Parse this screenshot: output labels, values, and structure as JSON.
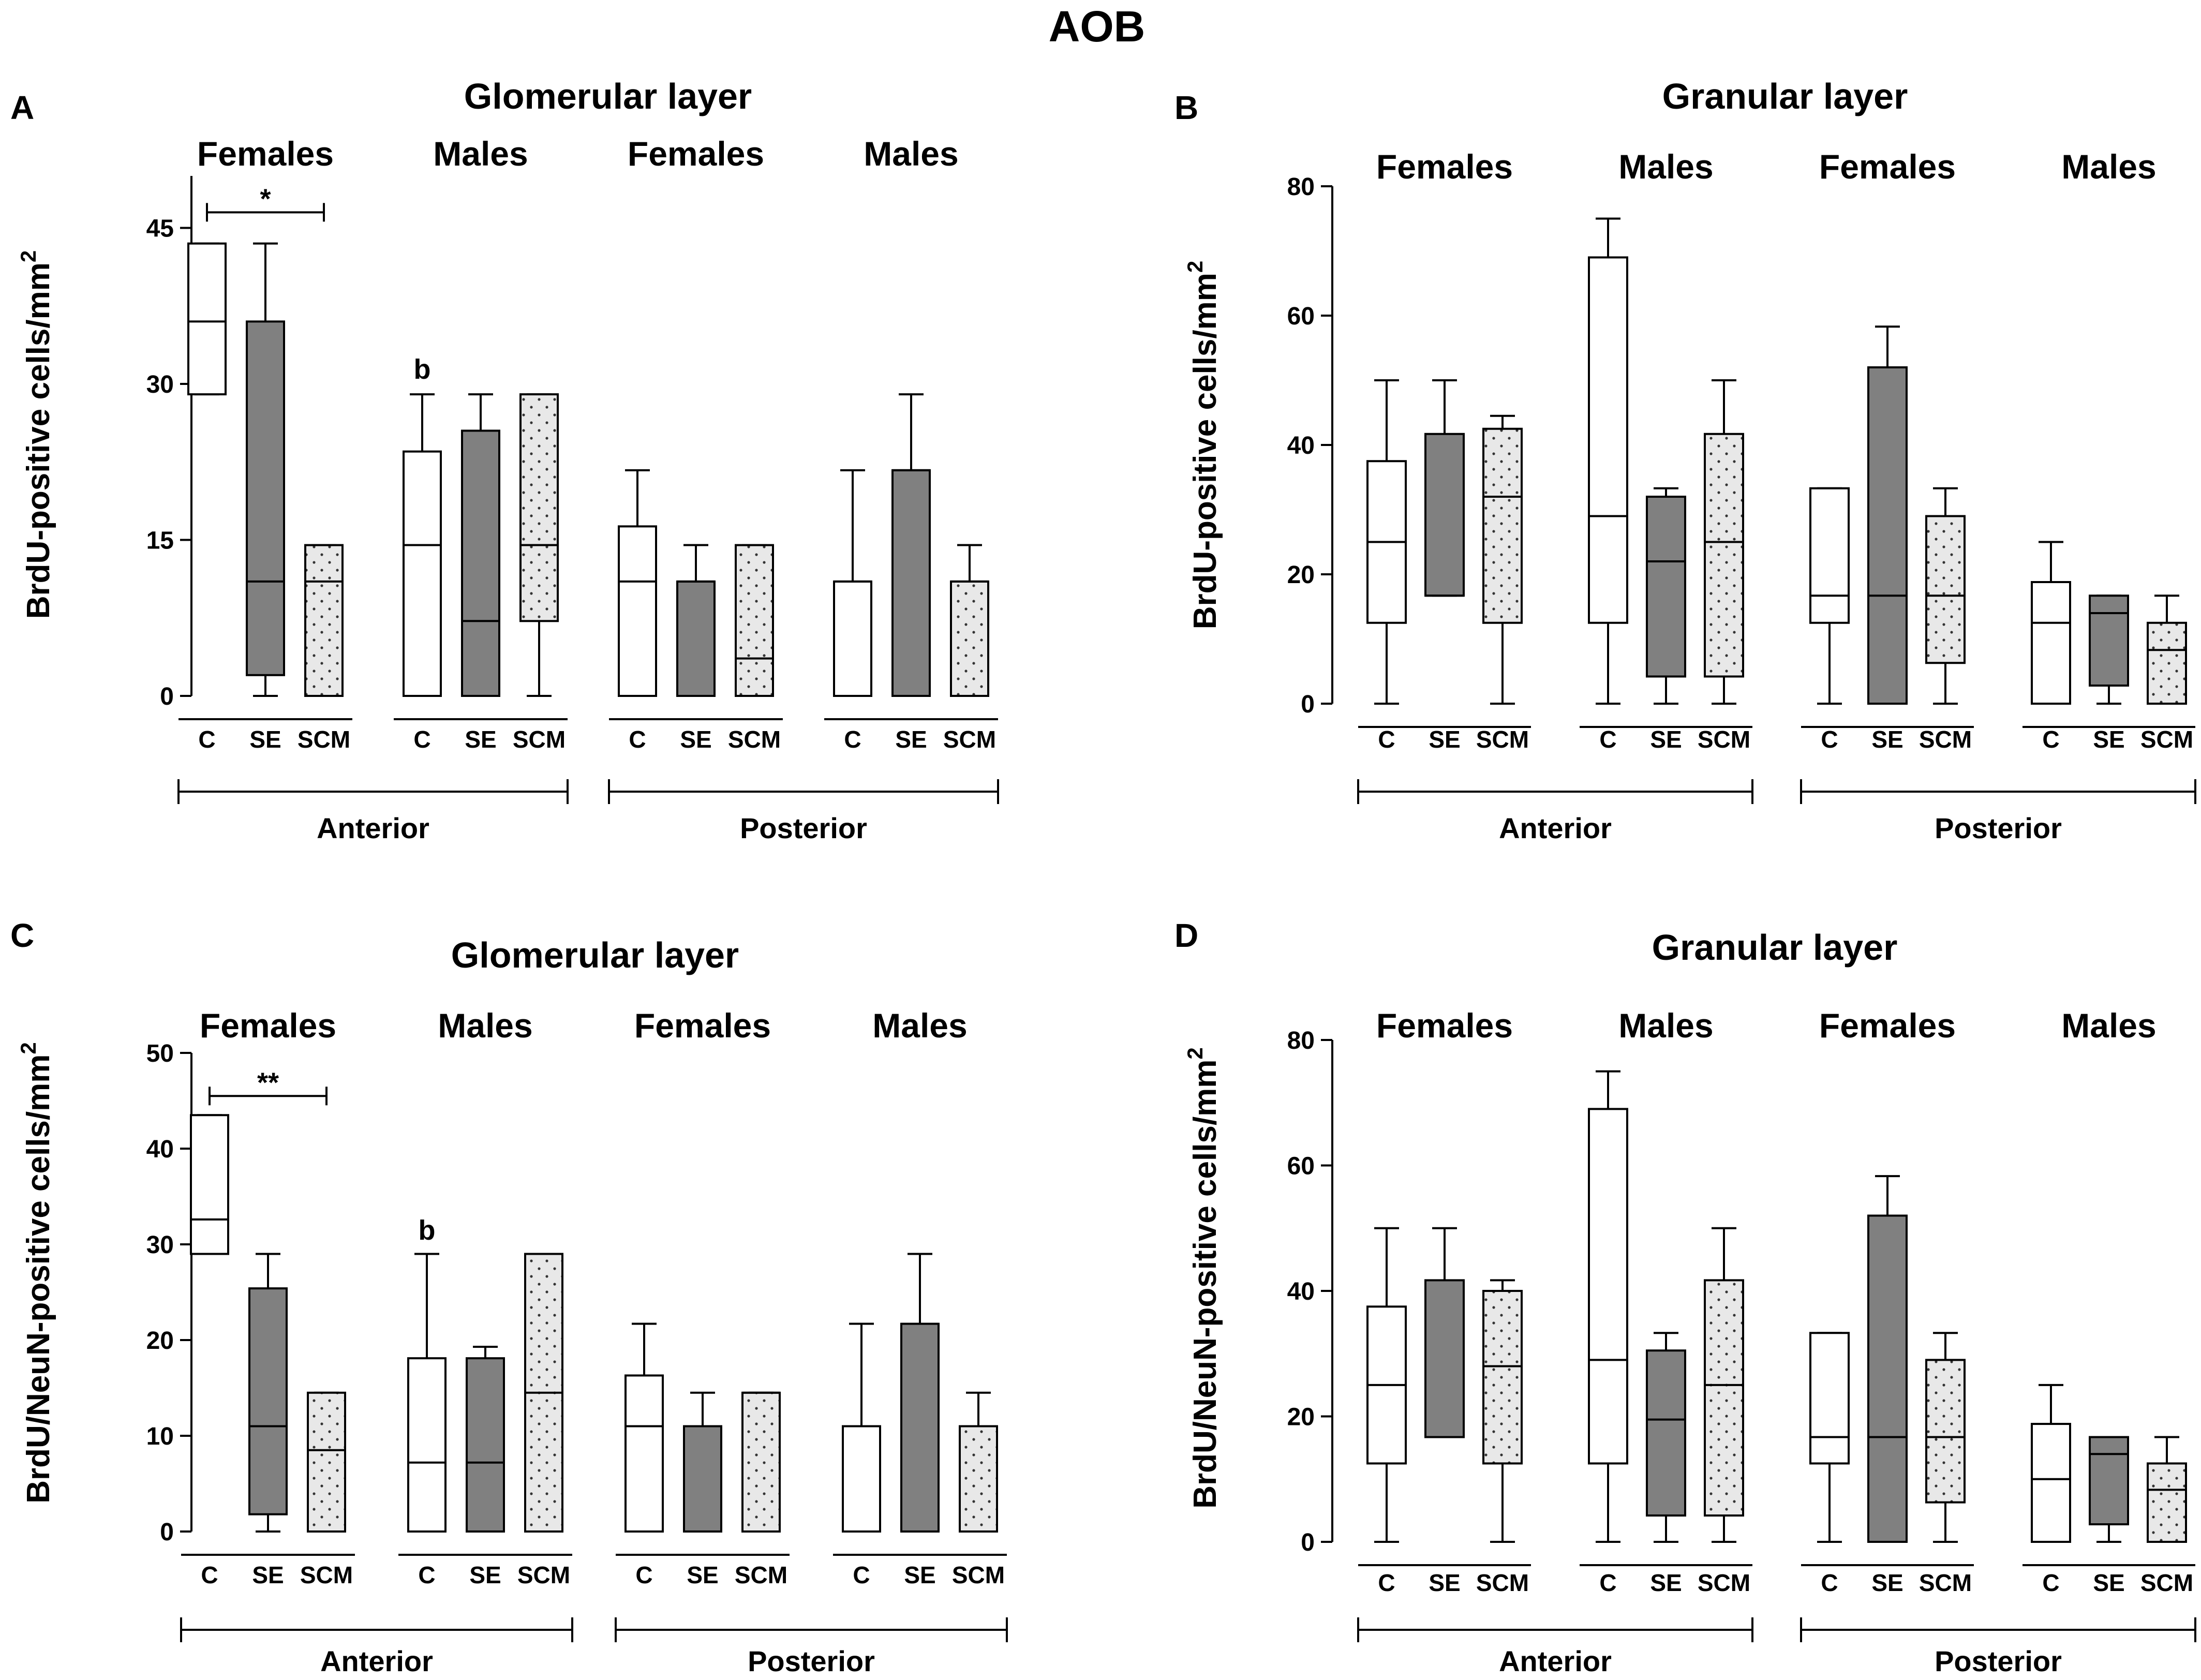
{
  "figure_title": "AOB",
  "colors": {
    "C": "#ffffff",
    "SE": "#808080",
    "SCM": "#e8e8e8",
    "stroke": "#000000"
  },
  "chart_data": [
    {
      "type": "boxplot",
      "panel": "A",
      "title": "Glomerular layer",
      "ylabel": "BrdU-positive cells/mm",
      "ylabel_sup": "2",
      "yticks": [
        0,
        15,
        30,
        45
      ],
      "ylim": [
        0,
        50
      ],
      "groups": [
        "Females",
        "Males",
        "Females",
        "Males"
      ],
      "regions": [
        "Anterior",
        "Posterior"
      ],
      "categories": [
        "C",
        "SE",
        "SCM"
      ],
      "series": [
        {
          "name": "Anterior Females",
          "boxes": [
            {
              "cat": "C",
              "min": 29,
              "q1": 29,
              "median": 36,
              "q3": 43.5,
              "max": 43.5
            },
            {
              "cat": "SE",
              "min": 0,
              "q1": 2,
              "median": 11,
              "q3": 36,
              "max": 43.5
            },
            {
              "cat": "SCM",
              "min": 0,
              "q1": 0,
              "median": 11,
              "q3": 14.5,
              "max": 14.5
            }
          ]
        },
        {
          "name": "Anterior Males",
          "boxes": [
            {
              "cat": "C",
              "min": 0,
              "q1": 0,
              "median": 14.5,
              "q3": 23.5,
              "max": 29
            },
            {
              "cat": "SE",
              "min": 0,
              "q1": 0,
              "median": 7.2,
              "q3": 25.5,
              "max": 29
            },
            {
              "cat": "SCM",
              "min": 0,
              "q1": 7.2,
              "median": 14.5,
              "q3": 29,
              "max": 29
            }
          ]
        },
        {
          "name": "Posterior Females",
          "boxes": [
            {
              "cat": "C",
              "min": 0,
              "q1": 0,
              "median": 11,
              "q3": 16.3,
              "max": 21.7
            },
            {
              "cat": "SE",
              "min": 0,
              "q1": 0,
              "median": 11,
              "q3": 11,
              "max": 14.5
            },
            {
              "cat": "SCM",
              "min": 0,
              "q1": 0,
              "median": 3.6,
              "q3": 14.5,
              "max": 14.5
            }
          ]
        },
        {
          "name": "Posterior Males",
          "boxes": [
            {
              "cat": "C",
              "min": 0,
              "q1": 0,
              "median": 11,
              "q3": 11,
              "max": 21.7
            },
            {
              "cat": "SE",
              "min": 0,
              "q1": 0,
              "median": 21.7,
              "q3": 21.7,
              "max": 29
            },
            {
              "cat": "SCM",
              "min": 0,
              "q1": 0,
              "median": 11,
              "q3": 11,
              "max": 14.5
            }
          ]
        }
      ],
      "annotations": [
        {
          "text": "*",
          "type": "bracket",
          "group": 0,
          "from": "C",
          "to": "SCM",
          "y": 46.5
        },
        {
          "text": "b",
          "type": "label",
          "group": 1,
          "cat": "C",
          "y": 30.5
        }
      ]
    },
    {
      "type": "boxplot",
      "panel": "B",
      "title": "Granular layer",
      "ylabel": "BrdU-positive cells/mm",
      "ylabel_sup": "2",
      "yticks": [
        0,
        20,
        40,
        60,
        80
      ],
      "ylim": [
        0,
        80
      ],
      "groups": [
        "Females",
        "Males",
        "Females",
        "Males"
      ],
      "regions": [
        "Anterior",
        "Posterior"
      ],
      "categories": [
        "C",
        "SE",
        "SCM"
      ],
      "series": [
        {
          "name": "Anterior Females",
          "boxes": [
            {
              "cat": "C",
              "min": 0,
              "q1": 12.5,
              "median": 25,
              "q3": 37.5,
              "max": 50
            },
            {
              "cat": "SE",
              "min": 16.7,
              "q1": 16.7,
              "median": 16.7,
              "q3": 41.7,
              "max": 50
            },
            {
              "cat": "SCM",
              "min": 0,
              "q1": 12.5,
              "median": 32,
              "q3": 42.5,
              "max": 44.5
            }
          ]
        },
        {
          "name": "Anterior Males",
          "boxes": [
            {
              "cat": "C",
              "min": 0,
              "q1": 12.5,
              "median": 29,
              "q3": 69,
              "max": 75
            },
            {
              "cat": "SE",
              "min": 0,
              "q1": 4.2,
              "median": 22,
              "q3": 32,
              "max": 33.3
            },
            {
              "cat": "SCM",
              "min": 0,
              "q1": 4.2,
              "median": 25,
              "q3": 41.7,
              "max": 50
            }
          ]
        },
        {
          "name": "Posterior Females",
          "boxes": [
            {
              "cat": "C",
              "min": 0,
              "q1": 12.5,
              "median": 16.7,
              "q3": 33.3,
              "max": 33.3
            },
            {
              "cat": "SE",
              "min": 0,
              "q1": 0,
              "median": 16.7,
              "q3": 52,
              "max": 58.3
            },
            {
              "cat": "SCM",
              "min": 0,
              "q1": 6.3,
              "median": 16.7,
              "q3": 29,
              "max": 33.3
            }
          ]
        },
        {
          "name": "Posterior Males",
          "boxes": [
            {
              "cat": "C",
              "min": 0,
              "q1": 0,
              "median": 12.5,
              "q3": 18.8,
              "max": 25
            },
            {
              "cat": "SE",
              "min": 0,
              "q1": 2.8,
              "median": 14,
              "q3": 16.7,
              "max": 16.7
            },
            {
              "cat": "SCM",
              "min": 0,
              "q1": 0,
              "median": 8.3,
              "q3": 12.5,
              "max": 16.7
            }
          ]
        }
      ],
      "annotations": []
    },
    {
      "type": "boxplot",
      "panel": "C",
      "title": "Glomerular layer",
      "ylabel": "BrdU/NeuN-positive cells/mm",
      "ylabel_sup": "2",
      "yticks": [
        0,
        10,
        20,
        30,
        40,
        50
      ],
      "ylim": [
        0,
        50
      ],
      "groups": [
        "Females",
        "Males",
        "Females",
        "Males"
      ],
      "regions": [
        "Anterior",
        "Posterior"
      ],
      "categories": [
        "C",
        "SE",
        "SCM"
      ],
      "series": [
        {
          "name": "Anterior Females",
          "boxes": [
            {
              "cat": "C",
              "min": 29,
              "q1": 29,
              "median": 32.6,
              "q3": 43.5,
              "max": 43.5
            },
            {
              "cat": "SE",
              "min": 0,
              "q1": 1.8,
              "median": 11,
              "q3": 25.4,
              "max": 29
            },
            {
              "cat": "SCM",
              "min": 0,
              "q1": 0,
              "median": 8.5,
              "q3": 14.5,
              "max": 14.5
            }
          ]
        },
        {
          "name": "Anterior Males",
          "boxes": [
            {
              "cat": "C",
              "min": 0,
              "q1": 0,
              "median": 7.2,
              "q3": 18.1,
              "max": 29
            },
            {
              "cat": "SE",
              "min": 0,
              "q1": 0,
              "median": 7.2,
              "q3": 18.1,
              "max": 19.3
            },
            {
              "cat": "SCM",
              "min": 0,
              "q1": 0,
              "median": 14.5,
              "q3": 29,
              "max": 29
            }
          ]
        },
        {
          "name": "Posterior Females",
          "boxes": [
            {
              "cat": "C",
              "min": 0,
              "q1": 0,
              "median": 11,
              "q3": 16.3,
              "max": 21.7
            },
            {
              "cat": "SE",
              "min": 0,
              "q1": 0,
              "median": 11,
              "q3": 11,
              "max": 14.5
            },
            {
              "cat": "SCM",
              "min": 0,
              "q1": 0,
              "median": 14.5,
              "q3": 14.5,
              "max": 14.5
            }
          ]
        },
        {
          "name": "Posterior Males",
          "boxes": [
            {
              "cat": "C",
              "min": 0,
              "q1": 0,
              "median": 11,
              "q3": 11,
              "max": 21.7
            },
            {
              "cat": "SE",
              "min": 0,
              "q1": 0,
              "median": 21.7,
              "q3": 21.7,
              "max": 29
            },
            {
              "cat": "SCM",
              "min": 0,
              "q1": 0,
              "median": 11,
              "q3": 11,
              "max": 14.5
            }
          ]
        }
      ],
      "annotations": [
        {
          "text": "**",
          "type": "bracket",
          "group": 0,
          "from": "C",
          "to": "SCM",
          "y": 45.5
        },
        {
          "text": "b",
          "type": "label",
          "group": 1,
          "cat": "C",
          "y": 30.5
        }
      ]
    },
    {
      "type": "boxplot",
      "panel": "D",
      "title": "Granular layer",
      "ylabel": "BrdU/NeuN-positive cells/mm",
      "ylabel_sup": "2",
      "yticks": [
        0,
        20,
        40,
        60,
        80
      ],
      "ylim": [
        0,
        80
      ],
      "groups": [
        "Females",
        "Males",
        "Females",
        "Males"
      ],
      "regions": [
        "Anterior",
        "Posterior"
      ],
      "categories": [
        "C",
        "SE",
        "SCM"
      ],
      "series": [
        {
          "name": "Anterior Females",
          "boxes": [
            {
              "cat": "C",
              "min": 0,
              "q1": 12.5,
              "median": 25,
              "q3": 37.5,
              "max": 50
            },
            {
              "cat": "SE",
              "min": 16.7,
              "q1": 16.7,
              "median": 16.7,
              "q3": 41.7,
              "max": 50
            },
            {
              "cat": "SCM",
              "min": 0,
              "q1": 12.5,
              "median": 28,
              "q3": 40,
              "max": 41.7
            }
          ]
        },
        {
          "name": "Anterior Males",
          "boxes": [
            {
              "cat": "C",
              "min": 0,
              "q1": 12.5,
              "median": 29,
              "q3": 69,
              "max": 75
            },
            {
              "cat": "SE",
              "min": 0,
              "q1": 4.2,
              "median": 19.5,
              "q3": 30.5,
              "max": 33.3
            },
            {
              "cat": "SCM",
              "min": 0,
              "q1": 4.2,
              "median": 25,
              "q3": 41.7,
              "max": 50
            }
          ]
        },
        {
          "name": "Posterior Females",
          "boxes": [
            {
              "cat": "C",
              "min": 0,
              "q1": 12.5,
              "median": 16.7,
              "q3": 33.3,
              "max": 33.3
            },
            {
              "cat": "SE",
              "min": 0,
              "q1": 0,
              "median": 16.7,
              "q3": 52,
              "max": 58.3
            },
            {
              "cat": "SCM",
              "min": 0,
              "q1": 6.3,
              "median": 16.7,
              "q3": 29,
              "max": 33.3
            }
          ]
        },
        {
          "name": "Posterior Males",
          "boxes": [
            {
              "cat": "C",
              "min": 0,
              "q1": 0,
              "median": 10,
              "q3": 18.8,
              "max": 25
            },
            {
              "cat": "SE",
              "min": 0,
              "q1": 2.8,
              "median": 14,
              "q3": 16.7,
              "max": 16.7
            },
            {
              "cat": "SCM",
              "min": 0,
              "q1": 0,
              "median": 8.3,
              "q3": 12.5,
              "max": 16.7
            }
          ]
        }
      ],
      "annotations": []
    }
  ]
}
